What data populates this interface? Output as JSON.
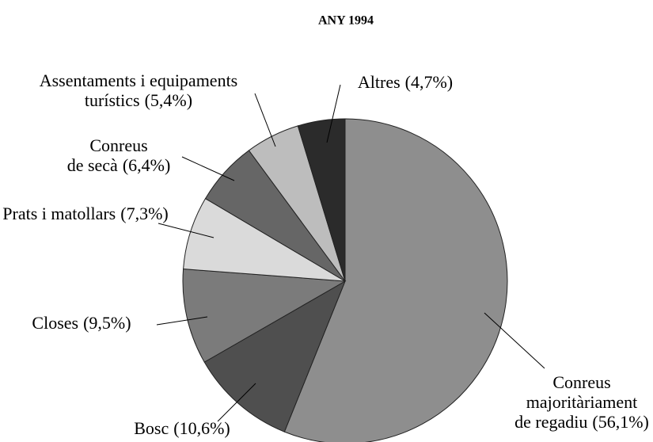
{
  "chart_data": {
    "type": "pie",
    "title": "ANY 1994",
    "categories": [
      [
        "Conreus",
        "majoritàriament",
        "de regadiu"
      ],
      [
        "Bosc"
      ],
      [
        "Closes"
      ],
      [
        "Prats i matollars"
      ],
      [
        "Conreus",
        "de secà"
      ],
      [
        "Assentaments i equipaments",
        "turístics"
      ],
      [
        "Altres"
      ]
    ],
    "values": [
      56.1,
      10.6,
      9.5,
      7.3,
      6.4,
      5.4,
      4.7
    ],
    "value_labels": [
      "(56,1%)",
      "(10,6%)",
      "(9,5%)",
      "(7,3%)",
      "(6,4%)",
      "(5,4%)",
      "(4,7%)"
    ],
    "colors": [
      "#8e8e8e",
      "#4f4f4f",
      "#7b7b7b",
      "#dadada",
      "#666666",
      "#bdbdbd",
      "#2b2b2b"
    ]
  }
}
